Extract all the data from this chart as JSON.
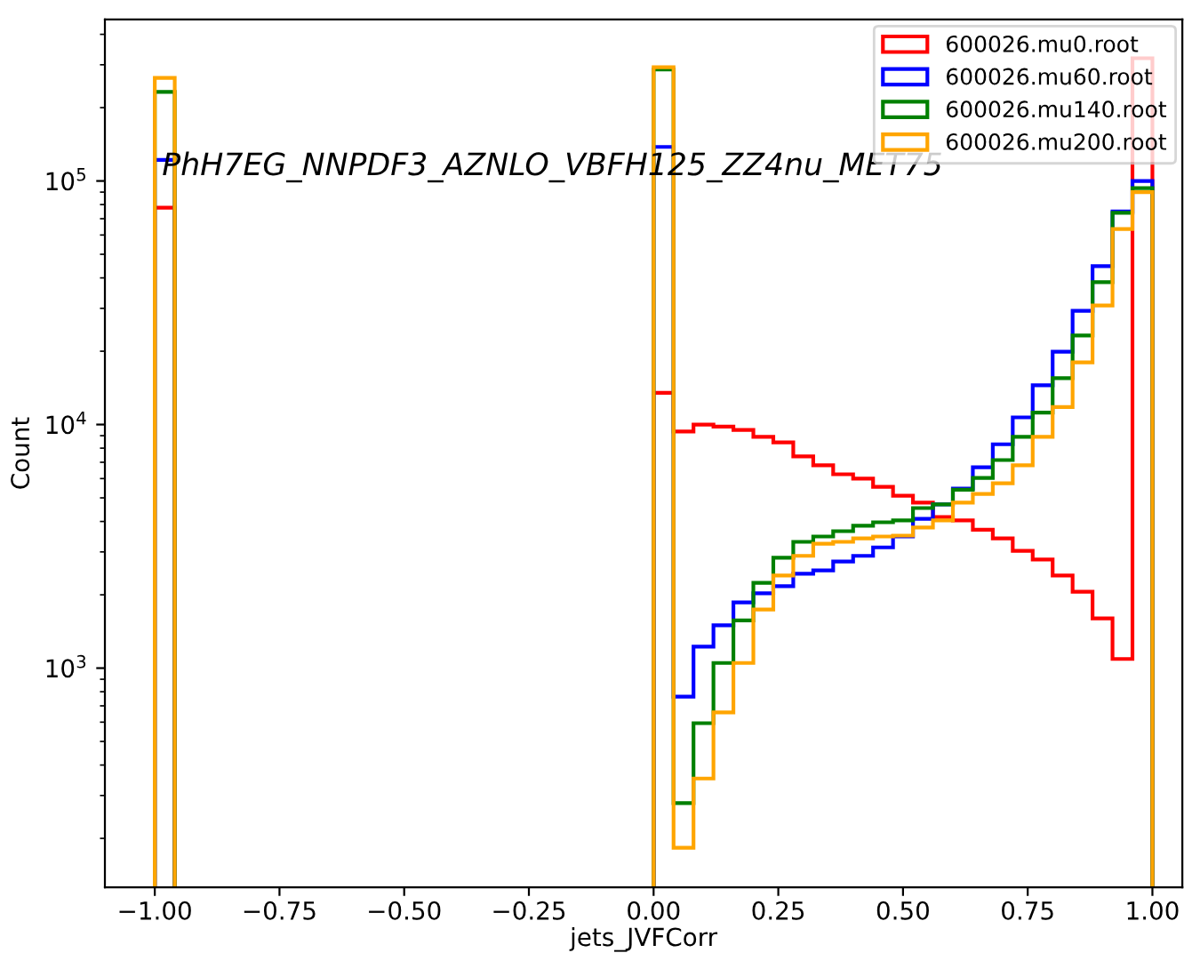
{
  "chart_data": {
    "type": "histogram",
    "annotations": [
      "PhH7EG_NNPDF3_AZNLO_VBFH125_ZZ4nu_MET75"
    ],
    "xlabel": "jets_JVFCorr",
    "ylabel": "Count",
    "bins": [
      -1.0,
      -0.96,
      0.0,
      0.04,
      0.08,
      0.12,
      0.16,
      0.2,
      0.24,
      0.28,
      0.32,
      0.36,
      0.4,
      0.44,
      0.48,
      0.52,
      0.56,
      0.6,
      0.64,
      0.68,
      0.72,
      0.76,
      0.8,
      0.84,
      0.88,
      0.92,
      0.96,
      1.0
    ],
    "series": [
      {
        "name": "600026.mu0.root",
        "color": "#ff0000",
        "values": [
          77700,
          null,
          13500,
          9360,
          10000,
          9800,
          9500,
          8900,
          8450,
          7400,
          6800,
          6250,
          6000,
          5550,
          5100,
          4780,
          4170,
          4040,
          3700,
          3410,
          3030,
          2790,
          2400,
          2060,
          1600,
          1090,
          319000
        ]
      },
      {
        "name": "600026.mu60.root",
        "color": "#0000ff",
        "values": [
          122000,
          null,
          138000,
          764,
          1225,
          1500,
          1860,
          2030,
          2170,
          2440,
          2520,
          2740,
          2890,
          3130,
          3470,
          4100,
          4700,
          5460,
          6680,
          8300,
          10700,
          14500,
          19900,
          29300,
          44700,
          75000,
          100000
        ]
      },
      {
        "name": "600026.mu140.root",
        "color": "#008000",
        "values": [
          232000,
          null,
          287000,
          279,
          594,
          1050,
          1570,
          2240,
          2840,
          3300,
          3470,
          3650,
          3840,
          3970,
          4040,
          4540,
          4700,
          5400,
          6040,
          7150,
          8900,
          11200,
          15500,
          23200,
          38400,
          74000,
          93500
        ]
      },
      {
        "name": "600026.mu200.root",
        "color": "#ffa500",
        "values": [
          265000,
          null,
          293000,
          183,
          352,
          658,
          1050,
          1740,
          2400,
          2890,
          3240,
          3300,
          3410,
          3470,
          3500,
          3780,
          4040,
          4780,
          5190,
          5740,
          6800,
          8900,
          11800,
          18000,
          30800,
          63500,
          90000
        ]
      }
    ],
    "log": "y",
    "xlim": [
      -1.1,
      1.06
    ],
    "xticks": [
      {
        "value": -1.0,
        "label": "−1.00"
      },
      {
        "value": -0.75,
        "label": "−0.75"
      },
      {
        "value": -0.5,
        "label": "−0.50"
      },
      {
        "value": -0.25,
        "label": "−0.25"
      },
      {
        "value": 0.0,
        "label": "0.00"
      },
      {
        "value": 0.25,
        "label": "0.25"
      },
      {
        "value": 0.5,
        "label": "0.50"
      },
      {
        "value": 0.75,
        "label": "0.75"
      },
      {
        "value": 1.0,
        "label": "1.00"
      }
    ],
    "ylim": [
      126,
      460000
    ],
    "yticks": [
      {
        "value": 1000,
        "label": "10$^{3}$"
      },
      {
        "value": 10000,
        "label": "10$^{4}$"
      },
      {
        "value": 100000,
        "label": "10$^{5}$"
      }
    ],
    "grid": false,
    "legend": "top right"
  }
}
